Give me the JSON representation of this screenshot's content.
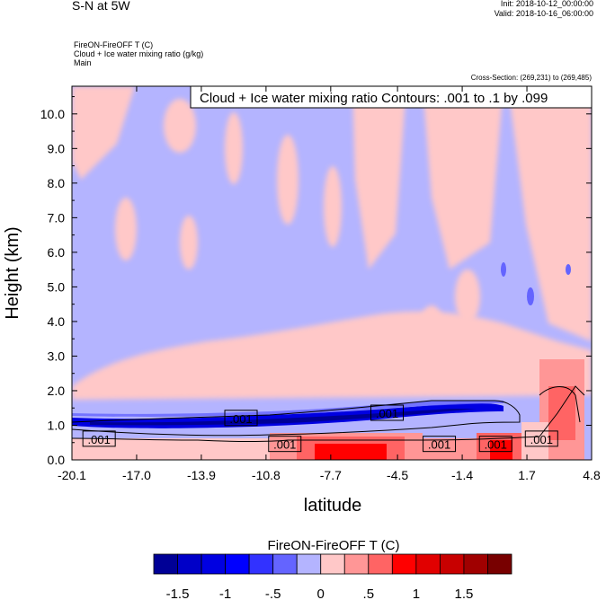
{
  "header": {
    "title": "S-N at 5W",
    "init": "Init: 2018-10-12_00:00:00",
    "valid": "Valid: 2018-10-16_06:00:00"
  },
  "fields": [
    "FireON-FireOFF T   (C)",
    "Cloud + Ice water mixing ratio   (g/kg)",
    "Main"
  ],
  "cross_section": "Cross-Section: (269,231) to (269,485)",
  "chart_data": {
    "type": "heatmap",
    "title": "Cloud + Ice water mixing ratio Contours: .001 to .1 by .099",
    "xlabel": "latitude",
    "ylabel": "Height (km)",
    "xlim": [
      -20.1,
      4.8
    ],
    "ylim": [
      0.0,
      10.8
    ],
    "x_ticks": [
      "-20.1",
      "-17.0",
      "-13.9",
      "-10.8",
      "-7.7",
      "-4.5",
      "-1.4",
      "1.7",
      "4.8"
    ],
    "y_ticks": [
      "0.0",
      "1.0",
      "2.0",
      "3.0",
      "4.0",
      "5.0",
      "6.0",
      "7.0",
      "8.0",
      "9.0",
      "10.0"
    ],
    "contour_labels": [
      {
        "text": ".001",
        "lat": -18.8,
        "height": 0.6
      },
      {
        "text": ".001",
        "lat": -12.0,
        "height": 1.2
      },
      {
        "text": ".001",
        "lat": -9.9,
        "height": 0.45
      },
      {
        "text": ".001",
        "lat": -5.0,
        "height": 1.35
      },
      {
        "text": ".001",
        "lat": -2.5,
        "height": 0.45
      },
      {
        "text": ".001",
        "lat": 0.2,
        "height": 0.45
      },
      {
        "text": ".001",
        "lat": 2.4,
        "height": 0.6
      }
    ],
    "colorbar": {
      "title": "FireON-FireOFF T  (C)",
      "tick_labels": [
        "-1.5",
        "-1",
        "-.5",
        "0",
        ".5",
        "1",
        "1.5"
      ],
      "colors": [
        "#000096",
        "#0000c8",
        "#0000e1",
        "#0000ff",
        "#3232ff",
        "#6464ff",
        "#b4b4ff",
        "#ffc8c8",
        "#ff9696",
        "#ff6464",
        "#ff0000",
        "#e10000",
        "#c80000",
        "#a00000",
        "#780000"
      ]
    }
  }
}
